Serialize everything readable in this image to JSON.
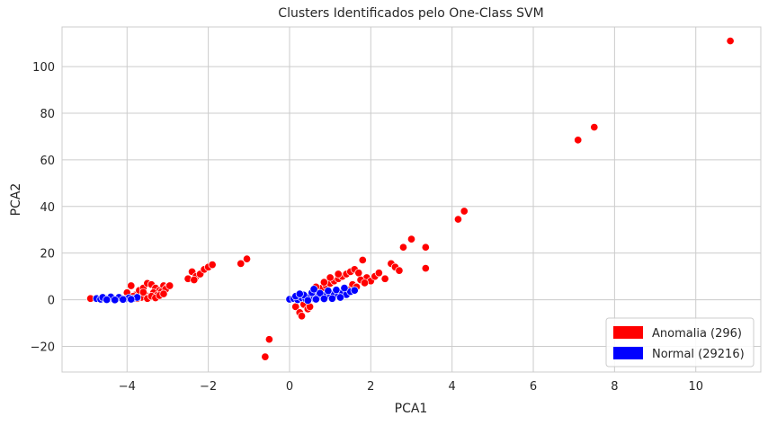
{
  "chart_data": {
    "type": "scatter",
    "title": "Clusters Identificados pelo One-Class SVM",
    "xlabel": "PCA1",
    "ylabel": "PCA2",
    "xlim": [
      -5.6,
      11.6
    ],
    "ylim": [
      -31,
      117
    ],
    "xticks": [
      -4,
      -2,
      0,
      2,
      4,
      6,
      8,
      10
    ],
    "yticks": [
      -20,
      0,
      20,
      40,
      60,
      80,
      100
    ],
    "xtick_labels": [
      "−4",
      "−2",
      "0",
      "2",
      "4",
      "6",
      "8",
      "10"
    ],
    "ytick_labels": [
      "−20",
      "0",
      "20",
      "40",
      "60",
      "80",
      "100"
    ],
    "grid": true,
    "legend_position": "bottom-right",
    "series": [
      {
        "name": "Anomalia (296)",
        "color": "#ff0000",
        "points": [
          [
            -4.9,
            0.5
          ],
          [
            -4.0,
            3.0
          ],
          [
            -3.9,
            6.0
          ],
          [
            -3.8,
            2.0
          ],
          [
            -3.7,
            4.0
          ],
          [
            -3.6,
            5.0
          ],
          [
            -3.5,
            7.0
          ],
          [
            -3.4,
            6.5
          ],
          [
            -3.3,
            5.0
          ],
          [
            -3.2,
            4.0
          ],
          [
            -3.1,
            6.0
          ],
          [
            -3.0,
            5.5
          ],
          [
            -3.55,
            2.0
          ],
          [
            -3.45,
            1.0
          ],
          [
            -3.35,
            3.0
          ],
          [
            -3.25,
            2.0
          ],
          [
            -3.15,
            3.5
          ],
          [
            -3.05,
            4.5
          ],
          [
            -2.95,
            6.0
          ],
          [
            -3.65,
            1.0
          ],
          [
            -3.75,
            0.5
          ],
          [
            -3.5,
            0.5
          ],
          [
            -3.4,
            1.5
          ],
          [
            -3.3,
            0.8
          ],
          [
            -3.2,
            1.8
          ],
          [
            -3.1,
            2.5
          ],
          [
            -3.6,
            3.2
          ],
          [
            -3.85,
            1.5
          ],
          [
            -2.5,
            9.0
          ],
          [
            -2.4,
            12.0
          ],
          [
            -2.3,
            10.0
          ],
          [
            -2.2,
            11.0
          ],
          [
            -2.1,
            13.0
          ],
          [
            -2.35,
            8.5
          ],
          [
            -2.0,
            14.0
          ],
          [
            -1.9,
            15.0
          ],
          [
            -1.2,
            15.5
          ],
          [
            -1.05,
            17.5
          ],
          [
            -0.5,
            -17.0
          ],
          [
            -0.6,
            -24.5
          ],
          [
            0.15,
            -3.0
          ],
          [
            0.25,
            -5.5
          ],
          [
            0.3,
            -7.0
          ],
          [
            0.35,
            -2.0
          ],
          [
            0.45,
            -4.0
          ],
          [
            0.5,
            -3.0
          ],
          [
            0.55,
            1.0
          ],
          [
            0.4,
            1.5
          ],
          [
            0.6,
            3.0
          ],
          [
            0.7,
            4.0
          ],
          [
            0.8,
            5.0
          ],
          [
            0.9,
            6.0
          ],
          [
            1.0,
            7.0
          ],
          [
            1.1,
            8.0
          ],
          [
            1.2,
            9.0
          ],
          [
            1.3,
            10.0
          ],
          [
            1.4,
            11.0
          ],
          [
            1.5,
            12.0
          ],
          [
            1.6,
            13.0
          ],
          [
            1.7,
            11.5
          ],
          [
            1.8,
            17.0
          ],
          [
            1.9,
            9.5
          ],
          [
            2.0,
            8.0
          ],
          [
            2.1,
            10.0
          ],
          [
            2.2,
            11.5
          ],
          [
            2.35,
            9.0
          ],
          [
            2.5,
            15.5
          ],
          [
            2.6,
            14.0
          ],
          [
            2.7,
            12.5
          ],
          [
            2.8,
            22.5
          ],
          [
            3.0,
            26.0
          ],
          [
            3.35,
            22.5
          ],
          [
            3.35,
            13.5
          ],
          [
            4.15,
            34.5
          ],
          [
            4.3,
            38.0
          ],
          [
            0.95,
            2.5
          ],
          [
            1.15,
            3.5
          ],
          [
            1.35,
            5.0
          ],
          [
            1.55,
            6.5
          ],
          [
            1.75,
            8.5
          ],
          [
            0.75,
            1.2
          ],
          [
            1.05,
            1.8
          ],
          [
            1.25,
            2.8
          ],
          [
            1.45,
            4.2
          ],
          [
            1.65,
            5.5
          ],
          [
            1.85,
            7.2
          ],
          [
            0.65,
            5.5
          ],
          [
            0.85,
            7.5
          ],
          [
            1.0,
            9.5
          ],
          [
            1.2,
            11.0
          ],
          [
            7.1,
            68.5
          ],
          [
            7.5,
            74.0
          ],
          [
            10.85,
            111.0
          ]
        ]
      },
      {
        "name": "Normal (29216)",
        "color": "#0000ff",
        "points": [
          [
            -4.75,
            0.5
          ],
          [
            -4.65,
            0.2
          ],
          [
            -4.55,
            0.6
          ],
          [
            -4.45,
            0.3
          ],
          [
            -4.35,
            0.7
          ],
          [
            -4.25,
            0.4
          ],
          [
            -4.15,
            0.6
          ],
          [
            -4.05,
            0.3
          ],
          [
            -3.95,
            0.8
          ],
          [
            -3.85,
            0.5
          ],
          [
            -3.75,
            1.0
          ],
          [
            -4.6,
            1.0
          ],
          [
            -4.4,
            1.2
          ],
          [
            -4.2,
            1.0
          ],
          [
            -4.5,
            0.0
          ],
          [
            -4.3,
            -0.1
          ],
          [
            -4.1,
            0.1
          ],
          [
            -3.9,
            0.2
          ],
          [
            0.0,
            0.2
          ],
          [
            0.1,
            0.5
          ],
          [
            0.2,
            0.0
          ],
          [
            0.3,
            0.8
          ],
          [
            0.4,
            0.3
          ],
          [
            0.5,
            1.2
          ],
          [
            0.6,
            0.6
          ],
          [
            0.7,
            1.5
          ],
          [
            0.8,
            1.0
          ],
          [
            0.9,
            2.0
          ],
          [
            1.0,
            1.4
          ],
          [
            1.1,
            2.5
          ],
          [
            1.2,
            1.8
          ],
          [
            1.3,
            3.0
          ],
          [
            1.4,
            2.2
          ],
          [
            1.5,
            3.5
          ],
          [
            1.6,
            4.0
          ],
          [
            0.15,
            1.5
          ],
          [
            0.35,
            2.0
          ],
          [
            0.55,
            3.0
          ],
          [
            0.75,
            2.8
          ],
          [
            0.95,
            3.8
          ],
          [
            0.45,
            -0.3
          ],
          [
            0.65,
            0.2
          ],
          [
            0.85,
            0.4
          ],
          [
            1.05,
            0.5
          ],
          [
            1.25,
            1.0
          ],
          [
            0.25,
            2.5
          ],
          [
            0.6,
            4.5
          ],
          [
            1.15,
            4.2
          ],
          [
            1.35,
            5.0
          ]
        ]
      }
    ]
  }
}
